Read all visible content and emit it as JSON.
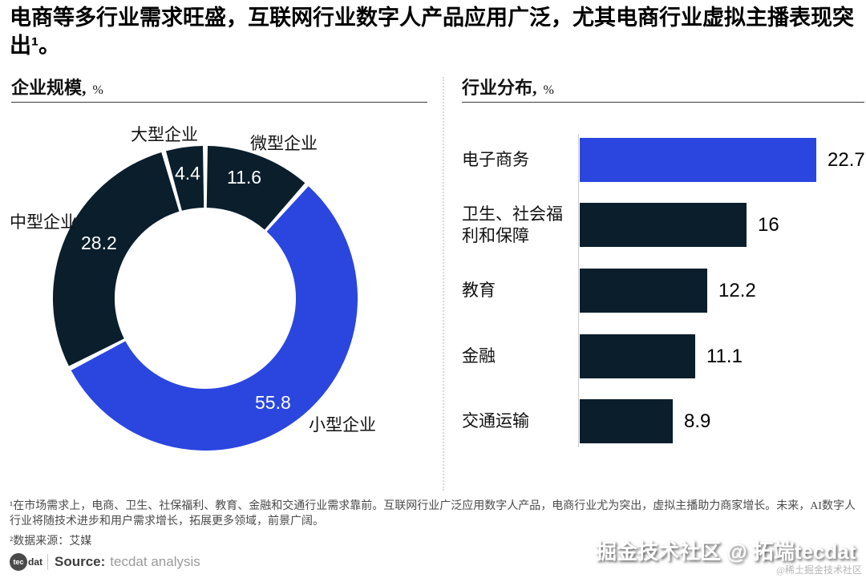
{
  "page": {
    "title": "电商等多行业需求旺盛，互联网行业数字人产品应用广泛，尤其电商行业虚拟主播表现突出¹。",
    "footnote1": "¹在市场需求上，电商、卫生、社保福利、教育、金融和交通行业需求靠前。互联网行业广泛应用数字人产品，电商行业尤为突出，虚拟主播助力商家增长。未来，AI数字人行业将随技术进步和用户需求增长，拓展更多领域，前景广阔。",
    "footnote2": "²数据来源：艾媒",
    "logo_tec": "tec",
    "logo_dat": "dat",
    "source_label": "Source:",
    "source_text": "tecdat analysis",
    "watermark_large": "掘金技术社区 @ 拓端tecdat",
    "watermark_small": "@稀土掘金技术社区"
  },
  "colors": {
    "navy": "#0A1E2C",
    "blue": "#2B46DF",
    "axis": "#cccccc"
  },
  "chart_data": [
    {
      "type": "pie",
      "donut": true,
      "title": "企业规模,",
      "unit": "%",
      "start_angle_deg": 0,
      "direction": "clockwise-from-top",
      "inner_radius_ratio": 0.595,
      "segments": [
        {
          "label": "微型企业",
          "value": 11.6,
          "color": "#0A1E2C"
        },
        {
          "label": "小型企业",
          "value": 55.8,
          "color": "#2B46DF"
        },
        {
          "label": "中型企业",
          "value": 28.2,
          "color": "#0A1E2C"
        },
        {
          "label": "大型企业",
          "value": 4.4,
          "color": "#0A1E2C"
        }
      ]
    },
    {
      "type": "bar",
      "orientation": "horizontal",
      "title": "行业分布,",
      "unit": "%",
      "xlim": [
        0,
        23
      ],
      "grid": false,
      "legend": "none",
      "categories": [
        "电子商务",
        "卫生、社会福利和保障",
        "教育",
        "金融",
        "交通运输"
      ],
      "values": [
        22.7,
        16,
        12.2,
        11.1,
        8.9
      ],
      "value_labels": [
        "22.7",
        "16",
        "12.2",
        "11.1",
        "8.9"
      ],
      "bar_colors": [
        "#2B46DF",
        "#0A1E2C",
        "#0A1E2C",
        "#0A1E2C",
        "#0A1E2C"
      ]
    }
  ]
}
